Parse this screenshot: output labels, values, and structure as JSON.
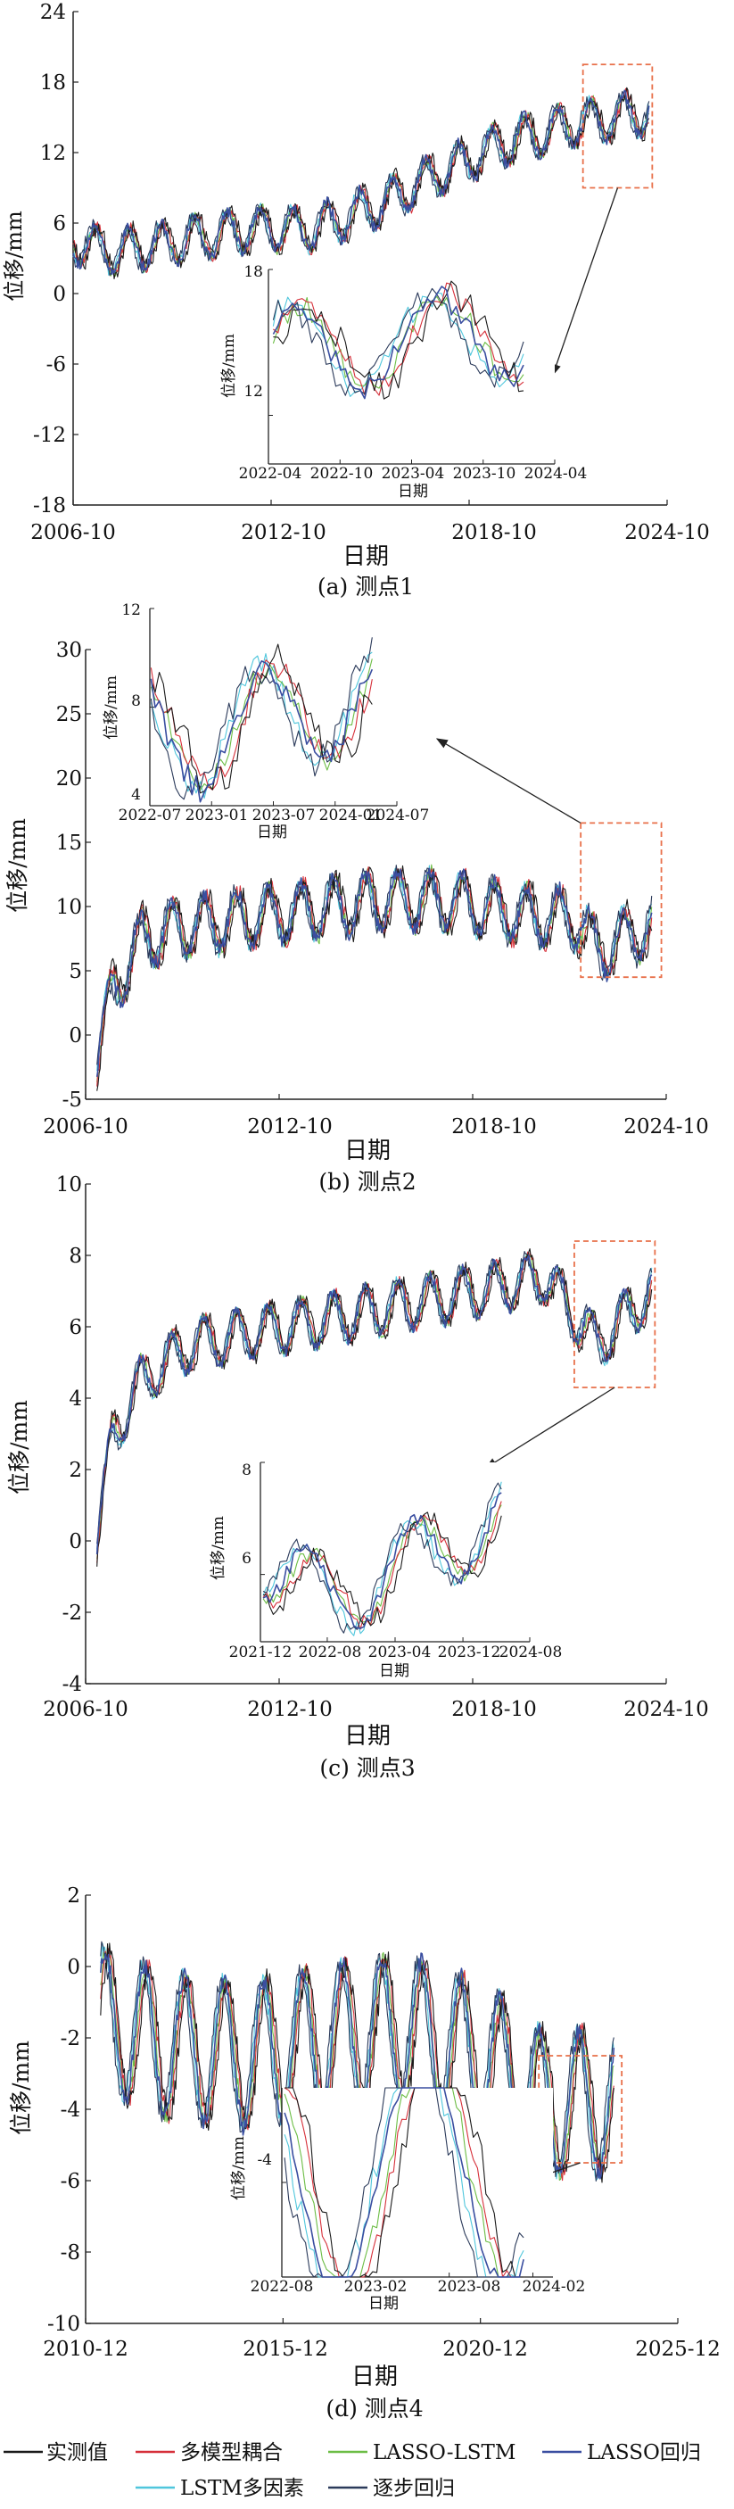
{
  "chart_data": [
    {
      "type": "line",
      "caption": "(a) 测点1",
      "xlabel": "日期",
      "ylabel": "位移/mm",
      "ylim": [
        -18,
        24
      ],
      "yticks": [
        "-18",
        "-12",
        "-6",
        "0",
        "6",
        "12",
        "18",
        "24"
      ],
      "xlim": [
        2006.75,
        2024.75
      ],
      "xticks": [
        {
          "v": 2006.75,
          "label": "2006-10"
        },
        {
          "v": 2012.75,
          "label": "2012-10"
        },
        {
          "v": 2018.75,
          "label": "2018-10"
        },
        {
          "v": 2024.75,
          "label": "2024-10"
        }
      ],
      "highlight": {
        "x": [
          2022.2,
          2024.3
        ],
        "y": [
          9,
          19.5
        ]
      },
      "inset": {
        "ylim": [
          10,
          18
        ],
        "yticks": [
          "12",
          "18"
        ],
        "xlim": [
          2022.25,
          2024.25
        ],
        "xticks": [
          {
            "v": 2022.25,
            "label": "2022-04"
          },
          {
            "v": 2022.75,
            "label": "2022-10"
          },
          {
            "v": 2023.25,
            "label": "2023-04"
          },
          {
            "v": 2023.75,
            "label": "2023-10"
          },
          {
            "v": 2024.25,
            "label": "2024-04"
          }
        ],
        "xlabel": "日期",
        "ylabel": "位移/mm"
      },
      "trend": {
        "anchors": [
          [
            2006.75,
            4.5
          ],
          [
            2008,
            3.5
          ],
          [
            2010,
            4.5
          ],
          [
            2012,
            5.5
          ],
          [
            2014,
            5.5
          ],
          [
            2016,
            7.5
          ],
          [
            2018,
            10.5
          ],
          [
            2020,
            13
          ],
          [
            2022,
            14.5
          ],
          [
            2024.3,
            15.5
          ]
        ],
        "amp": 1.8,
        "noise": 0.5,
        "start": [
          2006.75,
          2024.2
        ]
      }
    },
    {
      "type": "line",
      "caption": "(b) 测点2",
      "xlabel": "日期",
      "ylabel": "位移/mm",
      "ylim": [
        -5,
        30
      ],
      "yticks": [
        "-5",
        "0",
        "5",
        "10",
        "15",
        "20",
        "25",
        "30"
      ],
      "xlim": [
        2006.75,
        2024.75
      ],
      "xticks": [
        {
          "v": 2006.75,
          "label": "2006-10"
        },
        {
          "v": 2012.75,
          "label": "2012-10"
        },
        {
          "v": 2018.75,
          "label": "2018-10"
        },
        {
          "v": 2024.75,
          "label": "2024-10"
        }
      ],
      "highlight": {
        "x": [
          2022.1,
          2024.6
        ],
        "y": [
          4.5,
          16.5
        ]
      },
      "inset": {
        "ylim": [
          4,
          12
        ],
        "yticks": [
          "4",
          "8",
          "12"
        ],
        "xlim": [
          2022.5,
          2024.5
        ],
        "xticks": [
          {
            "v": 2022.5,
            "label": "2022-07"
          },
          {
            "v": 2023.0,
            "label": "2023-01"
          },
          {
            "v": 2023.5,
            "label": "2023-07"
          },
          {
            "v": 2024.0,
            "label": "2024-01"
          },
          {
            "v": 2024.5,
            "label": "2024-07"
          }
        ],
        "xlabel": "日期",
        "ylabel": "位移/mm"
      },
      "trend": {
        "anchors": [
          [
            2007.1,
            -2
          ],
          [
            2007.6,
            3.5
          ],
          [
            2008.5,
            7.5
          ],
          [
            2010,
            8.5
          ],
          [
            2013,
            9.5
          ],
          [
            2016,
            10.5
          ],
          [
            2018,
            10.5
          ],
          [
            2020,
            9.5
          ],
          [
            2022,
            9
          ],
          [
            2022.6,
            6.5
          ],
          [
            2024.3,
            8.5
          ]
        ],
        "amp": 2.2,
        "noise": 0.6,
        "start": [
          2007.1,
          2024.3
        ]
      }
    },
    {
      "type": "line",
      "caption": "(c) 测点3",
      "xlabel": "日期",
      "ylabel": "位移/mm",
      "ylim": [
        -4,
        10
      ],
      "yticks": [
        "-4",
        "-2",
        "0",
        "2",
        "4",
        "6",
        "8",
        "10"
      ],
      "xlim": [
        2006.75,
        2024.75
      ],
      "xticks": [
        {
          "v": 2006.75,
          "label": "2006-10"
        },
        {
          "v": 2012.75,
          "label": "2012-10"
        },
        {
          "v": 2018.75,
          "label": "2018-10"
        },
        {
          "v": 2024.75,
          "label": "2024-10"
        }
      ],
      "highlight": {
        "x": [
          2021.9,
          2024.4
        ],
        "y": [
          4.3,
          8.4
        ]
      },
      "inset": {
        "ylim": [
          4.8,
          8
        ],
        "yticks": [
          "6",
          "8"
        ],
        "xlim": [
          2021.92,
          2024.58
        ],
        "xticks": [
          {
            "v": 2021.92,
            "label": "2021-12"
          },
          {
            "v": 2022.58,
            "label": "2022-08"
          },
          {
            "v": 2023.25,
            "label": "2023-04"
          },
          {
            "v": 2023.92,
            "label": "2023-12"
          },
          {
            "v": 2024.58,
            "label": "2024-08"
          }
        ],
        "xlabel": "日期",
        "ylabel": "位移/mm"
      },
      "trend": {
        "anchors": [
          [
            2007.1,
            0
          ],
          [
            2007.6,
            3
          ],
          [
            2008.5,
            4.5
          ],
          [
            2010,
            5.5
          ],
          [
            2013,
            6
          ],
          [
            2016,
            6.5
          ],
          [
            2019,
            7
          ],
          [
            2021,
            7.4
          ],
          [
            2022.6,
            5.5
          ],
          [
            2024.3,
            7
          ]
        ],
        "amp": 0.7,
        "noise": 0.15,
        "start": [
          2007.1,
          2024.3
        ]
      }
    },
    {
      "type": "line",
      "caption": "(d) 测点4",
      "xlabel": "日期",
      "ylabel": "位移/mm",
      "ylim": [
        -10,
        2
      ],
      "yticks": [
        "-10",
        "-8",
        "-6",
        "-4",
        "-2",
        "0",
        "2"
      ],
      "xlim": [
        2010.92,
        2025.92
      ],
      "xticks": [
        {
          "v": 2010.92,
          "label": "2010-12"
        },
        {
          "v": 2015.92,
          "label": "2015-12"
        },
        {
          "v": 2020.92,
          "label": "2020-12"
        },
        {
          "v": 2025.92,
          "label": "2025-12"
        }
      ],
      "highlight": {
        "x": [
          2022.4,
          2024.5
        ],
        "y": [
          -5.5,
          -2.5
        ]
      },
      "inset": {
        "ylim": [
          -5.5,
          -2.5
        ],
        "yticks": [
          "-4"
        ],
        "xlim": [
          2022.58,
          2024.2
        ],
        "xticks": [
          {
            "v": 2022.58,
            "label": "2022-08"
          },
          {
            "v": 2023.08,
            "label": "2023-02"
          },
          {
            "v": 2023.58,
            "label": "2023-08"
          },
          {
            "v": 2024.08,
            "label": "2024-02"
          }
        ],
        "xlabel": "日期",
        "ylabel": "位移/mm"
      },
      "trend": {
        "anchors": [
          [
            2011.3,
            -1.5
          ],
          [
            2013,
            -2.2
          ],
          [
            2015,
            -2.5
          ],
          [
            2017,
            -2
          ],
          [
            2019,
            -1.7
          ],
          [
            2021,
            -2.5
          ],
          [
            2022.5,
            -3.8
          ],
          [
            2024.3,
            -3.8
          ]
        ],
        "amp": 2.0,
        "noise": 0.25,
        "start": [
          2011.3,
          2024.3
        ]
      }
    }
  ],
  "legend": [
    {
      "label": "实测值",
      "color": "#1a1a1a"
    },
    {
      "label": "多模型耦合",
      "color": "#d6303a"
    },
    {
      "label": "LASSO-LSTM",
      "color": "#6cbd45"
    },
    {
      "label": "LASSO回归",
      "color": "#3a4ea0"
    },
    {
      "label": "LSTM多因素",
      "color": "#4fc6dc"
    },
    {
      "label": "逐步回归",
      "color": "#2b3a5a"
    }
  ]
}
